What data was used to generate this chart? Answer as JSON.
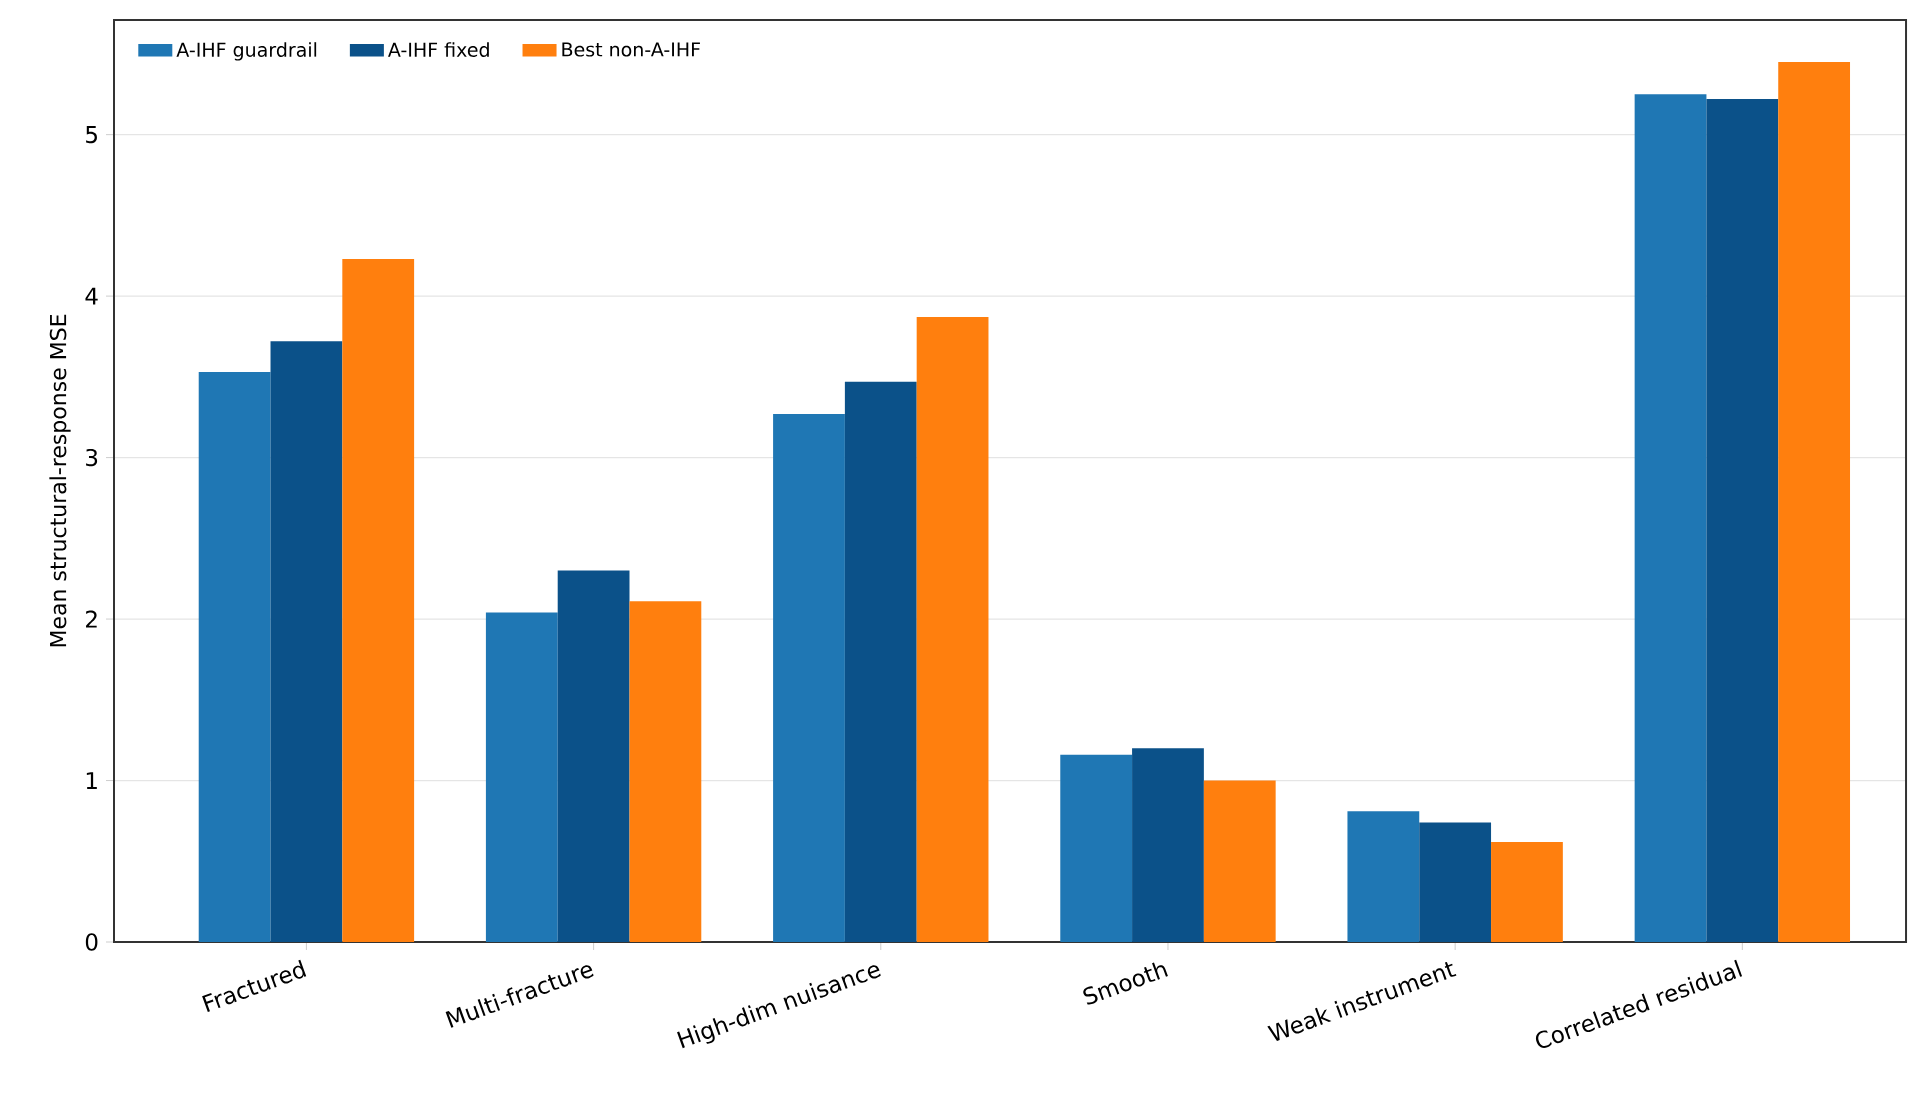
{
  "chart_data": {
    "type": "bar",
    "ylabel": "Mean structural-response MSE",
    "categories": [
      "Fractured",
      "Multi-fracture",
      "High-dim nuisance",
      "Smooth",
      "Weak instrument",
      "Correlated residual"
    ],
    "series": [
      {
        "name": "A-IHF guardrail",
        "color": "#1f77b4",
        "values": [
          3.53,
          2.04,
          3.27,
          1.16,
          0.81,
          5.25
        ]
      },
      {
        "name": "A-IHF fixed",
        "color": "#0b5189",
        "values": [
          3.72,
          2.3,
          3.47,
          1.2,
          0.74,
          5.22
        ]
      },
      {
        "name": "Best non-A-IHF",
        "color": "#ff7f0e",
        "values": [
          4.23,
          2.11,
          3.87,
          1.0,
          0.62,
          5.45
        ]
      }
    ],
    "ylim": [
      0,
      5.71
    ],
    "yticks": [
      0,
      1,
      2,
      3,
      4,
      5
    ],
    "grid": "y",
    "legend": "top left"
  }
}
